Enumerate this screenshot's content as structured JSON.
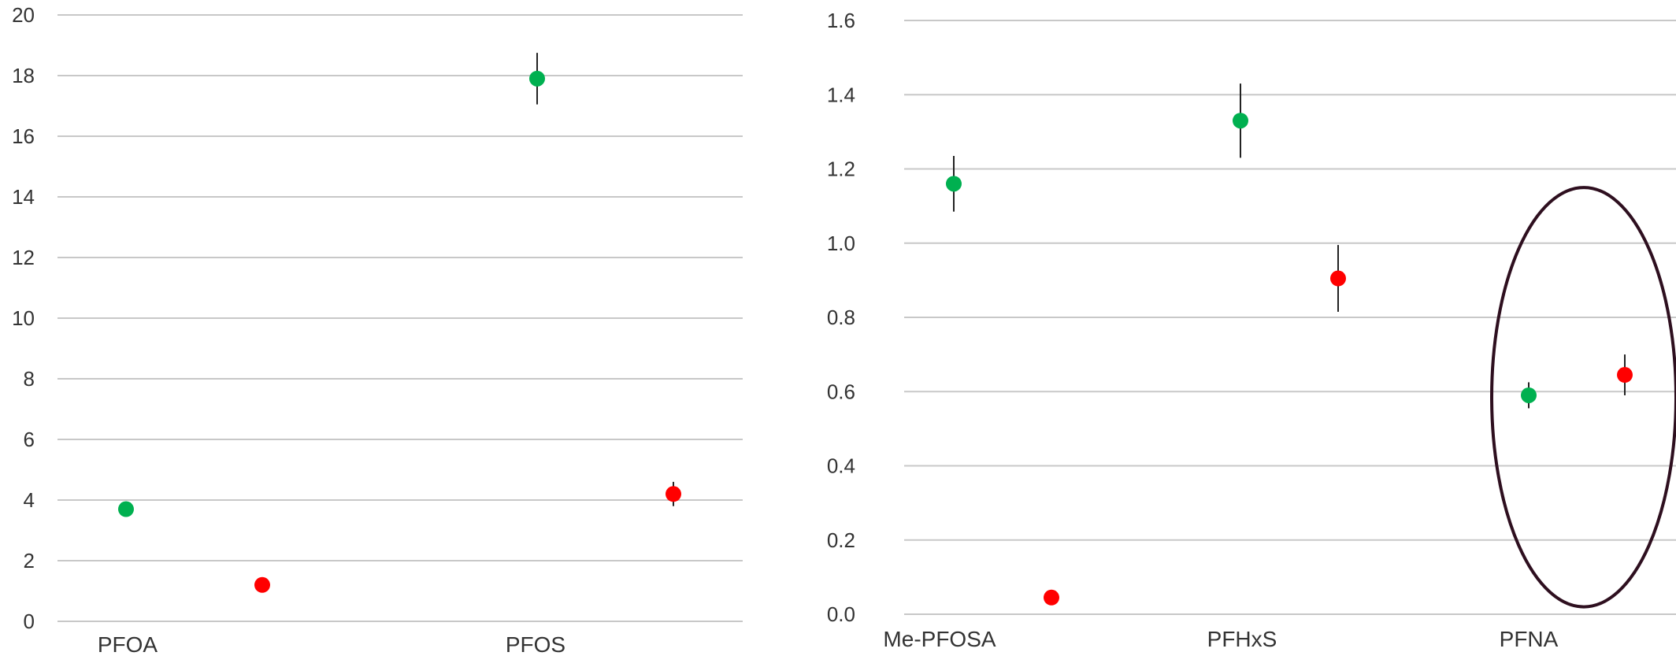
{
  "colors": {
    "series_a": "#00b050",
    "series_b": "#ff0000",
    "gridline": "#c8c8c8",
    "error_bar": "#222222",
    "highlight_ellipse": "#2e0f1f",
    "text": "#333333"
  },
  "chart_data": [
    {
      "type": "scatter",
      "title": "",
      "xlabel": "",
      "ylabel": "",
      "ylim": [
        0,
        20
      ],
      "yticks": [
        "0",
        "2",
        "4",
        "6",
        "8",
        "10",
        "12",
        "14",
        "16",
        "18",
        "20"
      ],
      "grid": true,
      "legend": "none",
      "categories": [
        "PFOA",
        "PFOS"
      ],
      "series": [
        {
          "color": "#00b050",
          "values": [
            3.7,
            17.9
          ],
          "errors": [
            0.15,
            0.85
          ]
        },
        {
          "color": "#ff0000",
          "values": [
            1.2,
            4.2
          ],
          "errors": [
            0.1,
            0.4
          ]
        }
      ]
    },
    {
      "type": "scatter",
      "title": "",
      "xlabel": "",
      "ylabel": "",
      "ylim": [
        0,
        1.6
      ],
      "yticks": [
        "0.0",
        "0.2",
        "0.4",
        "0.6",
        "0.8",
        "1.0",
        "1.2",
        "1.4",
        "1.6"
      ],
      "grid": true,
      "legend": "none",
      "categories": [
        "Me-PFOSA",
        "PFHxS",
        "PFNA"
      ],
      "series": [
        {
          "color": "#00b050",
          "values": [
            1.16,
            1.33,
            0.59
          ],
          "errors": [
            0.075,
            0.1,
            0.035
          ]
        },
        {
          "color": "#ff0000",
          "values": [
            0.045,
            0.905,
            0.645
          ],
          "errors": [
            0.005,
            0.09,
            0.055
          ]
        }
      ],
      "annotations": [
        {
          "type": "ellipse",
          "category": "PFNA",
          "ymin": 0.02,
          "ymax": 1.15
        }
      ]
    }
  ]
}
